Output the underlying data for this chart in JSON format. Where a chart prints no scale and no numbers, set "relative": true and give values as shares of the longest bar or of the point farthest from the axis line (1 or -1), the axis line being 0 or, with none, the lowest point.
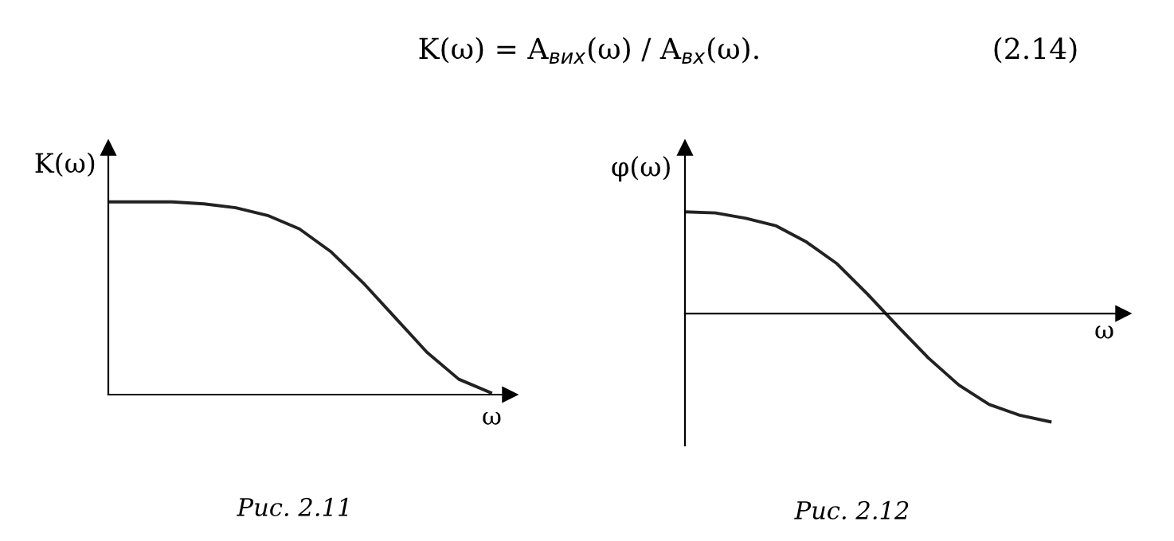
{
  "chart_data": [
    {
      "type": "line",
      "relative": true,
      "ylabel": "K(ω)",
      "xlabel": "ω",
      "color": "#222222",
      "categories": [
        null,
        null,
        null,
        null,
        null,
        null,
        null,
        null,
        null,
        null,
        null,
        null,
        null
      ],
      "values": [
        1,
        1,
        1,
        0.99,
        0.97,
        0.93,
        0.86,
        0.74,
        0.58,
        0.4,
        0.22,
        0.08,
        0.01
      ],
      "annotations": [
        "K(ω) = A$_{вих}$(ω) / A$_{вх}$(ω).",
        "(2.14)",
        "Рис. 2.11"
      ]
    },
    {
      "type": "line",
      "relative": true,
      "ylabel": "φ(ω)",
      "xlabel": "ω",
      "color": "#222222",
      "categories": [
        null,
        null,
        null,
        null,
        null,
        null,
        null,
        null,
        null,
        null,
        null,
        null,
        null
      ],
      "values": [
        0.94,
        0.93,
        0.88,
        0.81,
        0.66,
        0.46,
        0.18,
        -0.12,
        -0.41,
        -0.66,
        -0.84,
        -0.94,
        -1
      ],
      "annotations": [
        "Рис. 2.12"
      ]
    }
  ]
}
